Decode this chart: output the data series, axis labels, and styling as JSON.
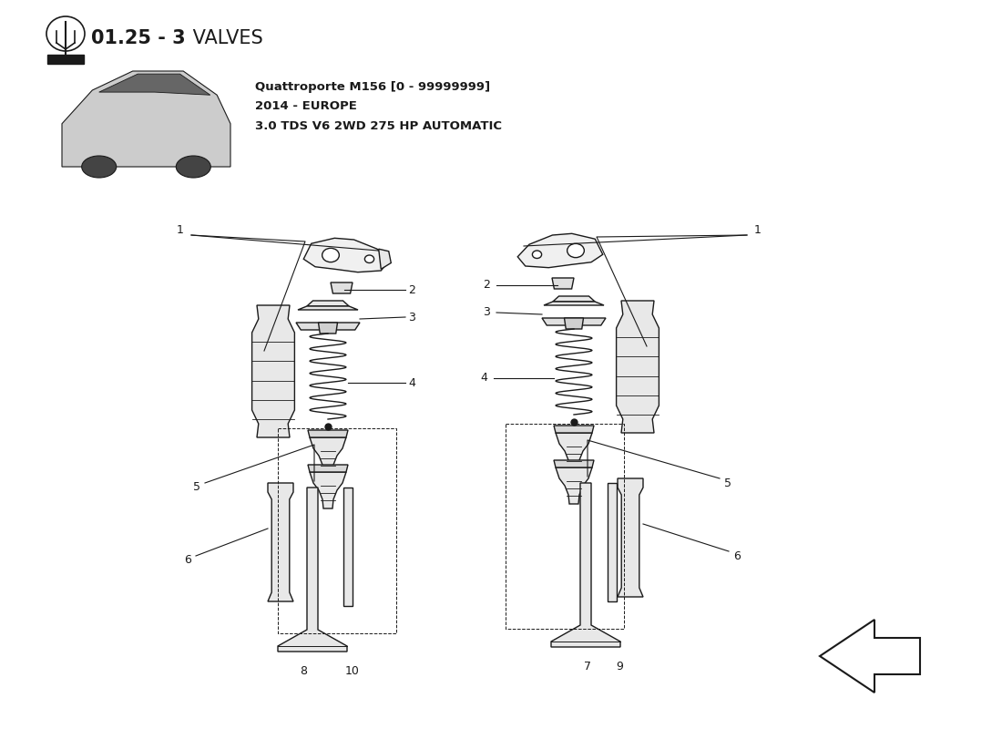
{
  "title_bold": "01.25 - 3",
  "title_normal": " VALVES",
  "subtitle_line1": "Quattroporte M156 [0 - 99999999]",
  "subtitle_line2": "2014 - EUROPE",
  "subtitle_line3": "3.0 TDS V6 2WD 275 HP AUTOMATIC",
  "bg_color": "#ffffff",
  "line_color": "#1a1a1a",
  "label_color": "#000000",
  "fig_width": 11.0,
  "fig_height": 8.0,
  "dpi": 100
}
